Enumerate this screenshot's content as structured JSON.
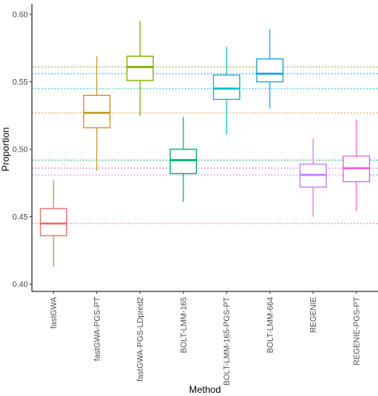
{
  "chart_data": {
    "type": "box",
    "xlabel": "Method",
    "ylabel": "Proportion",
    "ylim": [
      0.4,
      0.6
    ],
    "y_ticks": [
      "0.40",
      "0.45",
      "0.50",
      "0.55",
      "0.60"
    ],
    "grid": false,
    "reference_lines": "dotted horizontal line at each method's median, in that method's color",
    "categories": [
      "fastGWA",
      "fastGWA-PGS-PT",
      "fastGWA-PGS-LDpred2",
      "BOLT-LMM-165",
      "BOLT-LMM-165-PGS-PT",
      "BOLT-LMM-664",
      "REGENIE",
      "REGENIE-PGS-PT"
    ],
    "colors": [
      "#e8736e",
      "#c49a1c",
      "#7cae00",
      "#00b06a",
      "#00bfc4",
      "#21a3d8",
      "#c77cff",
      "#f064d8"
    ],
    "boxes": [
      {
        "whisker_low": 0.413,
        "q1": 0.436,
        "median": 0.445,
        "q3": 0.456,
        "whisker_high": 0.477
      },
      {
        "whisker_low": 0.484,
        "q1": 0.516,
        "median": 0.527,
        "q3": 0.54,
        "whisker_high": 0.569
      },
      {
        "whisker_low": 0.525,
        "q1": 0.551,
        "median": 0.561,
        "q3": 0.569,
        "whisker_high": 0.595
      },
      {
        "whisker_low": 0.461,
        "q1": 0.482,
        "median": 0.492,
        "q3": 0.5,
        "whisker_high": 0.524
      },
      {
        "whisker_low": 0.511,
        "q1": 0.537,
        "median": 0.545,
        "q3": 0.555,
        "whisker_high": 0.576
      },
      {
        "whisker_low": 0.53,
        "q1": 0.55,
        "median": 0.556,
        "q3": 0.567,
        "whisker_high": 0.589
      },
      {
        "whisker_low": 0.45,
        "q1": 0.472,
        "median": 0.481,
        "q3": 0.489,
        "whisker_high": 0.508
      },
      {
        "whisker_low": 0.454,
        "q1": 0.476,
        "median": 0.486,
        "q3": 0.495,
        "whisker_high": 0.522
      }
    ]
  }
}
